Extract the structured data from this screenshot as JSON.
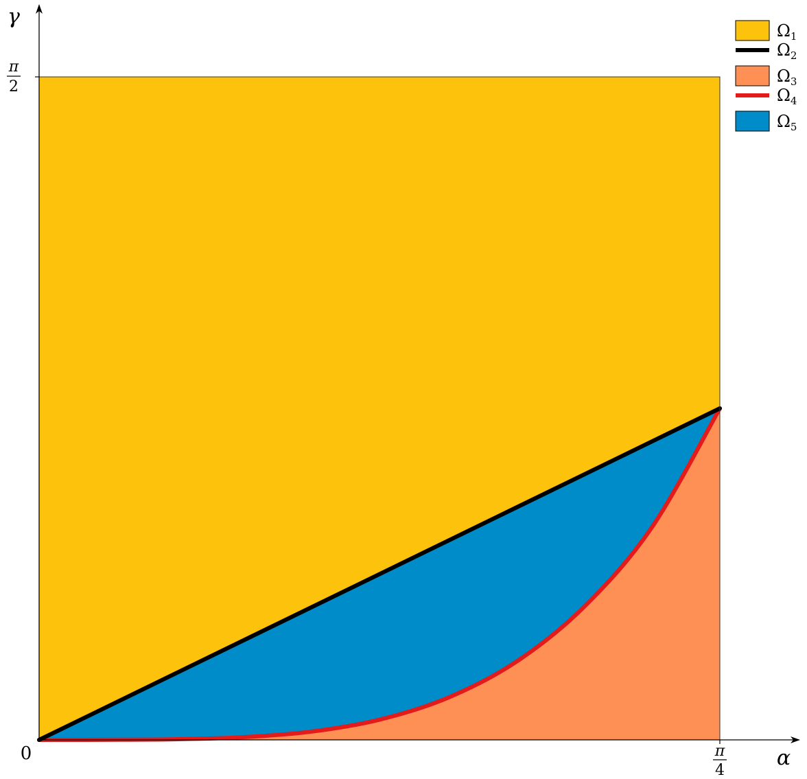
{
  "chart_data": {
    "type": "area",
    "xlabel": "α",
    "ylabel": "γ",
    "xlim": [
      0,
      0.7854
    ],
    "ylim": [
      0,
      1.5708
    ],
    "origin_label": "0",
    "x_ticks": [
      {
        "value": 0.7854,
        "num": "π",
        "den": "4"
      }
    ],
    "y_ticks": [
      {
        "value": 1.5708,
        "num": "π",
        "den": "2"
      }
    ],
    "regions": [
      {
        "name": "Ω",
        "sub": "1",
        "kind": "region",
        "color": "#fdc20b",
        "description_ref": "upper region above the line γ = α"
      },
      {
        "name": "Ω",
        "sub": "2",
        "kind": "curve",
        "color": "#000000"
      },
      {
        "name": "Ω",
        "sub": "3",
        "kind": "region",
        "color": "#fe8f55"
      },
      {
        "name": "Ω",
        "sub": "4",
        "kind": "curve",
        "color": "#e41b1b"
      },
      {
        "name": "Ω",
        "sub": "5",
        "kind": "region",
        "color": "#008bc9"
      }
    ],
    "line_omega2": {
      "x": [
        0,
        0.7854
      ],
      "y": [
        0,
        0.7854
      ]
    },
    "curve_omega4": {
      "x": [
        0,
        0.0785,
        0.1571,
        0.2356,
        0.3142,
        0.3927,
        0.4712,
        0.5498,
        0.6283,
        0.7069,
        0.7854
      ],
      "y": [
        0,
        0.0002,
        0.0014,
        0.0064,
        0.0196,
        0.0479,
        0.0994,
        0.1841,
        0.3142,
        0.5032,
        0.7854
      ]
    },
    "legend_position": "top-right",
    "grid": false
  }
}
